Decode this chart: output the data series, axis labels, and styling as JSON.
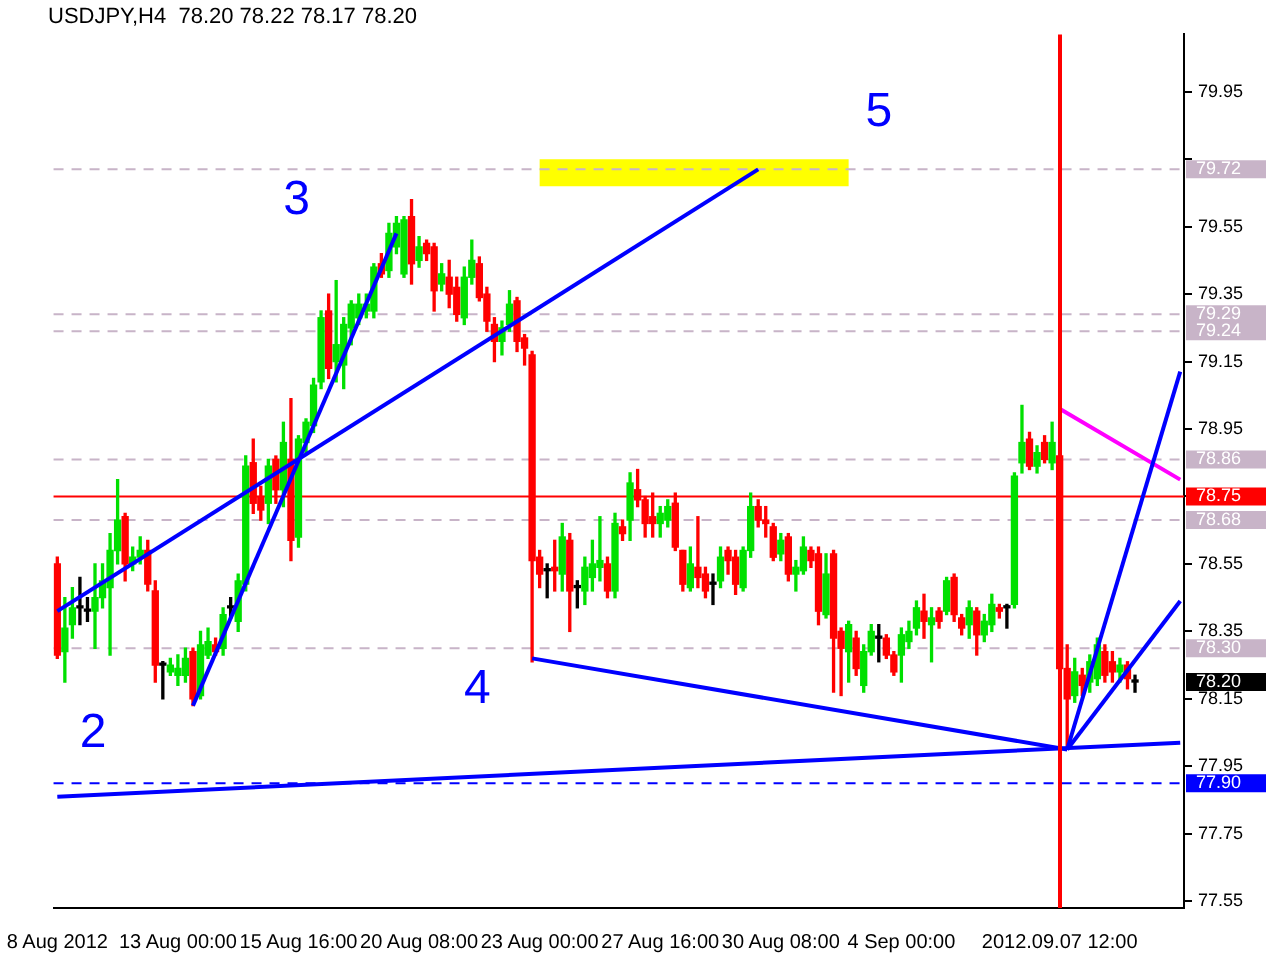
{
  "chart_data": {
    "type": "candlestick",
    "title": "USDJPY,H4  78.20 78.22 78.17 78.20",
    "categories": [
      "8 Aug 2012",
      null,
      null,
      null,
      null,
      null,
      null,
      null,
      null,
      null,
      null,
      null,
      null,
      null,
      null,
      null,
      "13 Aug 00:00",
      null,
      null,
      null,
      null,
      null,
      null,
      null,
      null,
      null,
      null,
      null,
      null,
      null,
      null,
      null,
      "15 Aug 16:00",
      null,
      null,
      null,
      null,
      null,
      null,
      null,
      null,
      null,
      null,
      null,
      null,
      null,
      null,
      null,
      "20 Aug 08:00",
      null,
      null,
      null,
      null,
      null,
      null,
      null,
      null,
      null,
      null,
      null,
      null,
      null,
      null,
      null,
      "23 Aug 00:00",
      null,
      null,
      null,
      null,
      null,
      null,
      null,
      null,
      null,
      null,
      null,
      null,
      null,
      null,
      null,
      "27 Aug 16:00",
      null,
      null,
      null,
      null,
      null,
      null,
      null,
      null,
      null,
      null,
      null,
      null,
      null,
      null,
      null,
      "30 Aug 08:00",
      null,
      null,
      null,
      null,
      null,
      null,
      null,
      null,
      null,
      null,
      null,
      null,
      null,
      null,
      null,
      "4 Sep 00:00",
      null,
      null,
      null,
      null,
      null,
      null,
      null,
      null,
      null,
      null,
      null,
      null,
      null,
      null,
      null,
      null,
      null,
      null,
      null,
      null,
      "2012.09.07 12:00",
      null,
      null,
      null,
      null,
      null,
      null,
      null,
      null,
      null,
      null,
      null,
      null,
      null,
      null,
      null,
      null
    ],
    "colors": [
      "#ff0000",
      "#00e000",
      "#00e000",
      "#000000",
      "#000000",
      "#00e000",
      "#00e000",
      "#00e000",
      "#00e000",
      "#ff0000",
      "#00e000",
      "#00e000",
      "#ff0000",
      "#ff0000",
      "#000000",
      "#00e000",
      "#00e000",
      "#00e000",
      "#ff0000",
      "#00e000",
      "#00e000",
      "#ff0000",
      "#00e000",
      "#000000",
      "#00e000",
      "#00e000",
      "#ff0000",
      "#ff0000",
      "#00e000",
      "#ff0000",
      "#00e000",
      "#ff0000",
      "#00e000",
      "#00e000",
      "#00e000",
      "#00e000",
      "#ff0000",
      "#00e000",
      "#00e000",
      "#00e000",
      "#00e000",
      "#00e000",
      "#00e000",
      "#ff0000",
      "#00e000",
      "#00e000",
      "#00e000",
      "#ff0000",
      "#00e000",
      "#ff0000",
      "#ff0000",
      "#00e000",
      "#ff0000",
      "#ff0000",
      "#00e000",
      "#00e000",
      "#ff0000",
      "#ff0000",
      "#ff0000",
      "#00e000",
      "#00e000",
      "#ff0000",
      "#ff0000",
      "#ff0000",
      "#ff0000",
      "#000000",
      "#ff0000",
      "#00e000",
      "#ff0000",
      "#000000",
      "#00e000",
      "#00e000",
      "#00e000",
      "#ff0000",
      "#00e000",
      "#ff0000",
      "#00e000",
      "#ff0000",
      "#ff0000",
      "#ff0000",
      "#00e000",
      "#00e000",
      "#ff0000",
      "#ff0000",
      "#00e000",
      "#ff0000",
      "#ff0000",
      "#000000",
      "#00e000",
      "#ff0000",
      "#ff0000",
      "#00e000",
      "#00e000",
      "#ff0000",
      "#ff0000",
      "#ff0000",
      "#00e000",
      "#ff0000",
      "#00e000",
      "#00e000",
      "#ff0000",
      "#ff0000",
      "#00e000",
      "#ff0000",
      "#ff0000",
      "#00e000",
      "#ff0000",
      "#00e000",
      "#00e000",
      "#000000",
      "#ff0000",
      "#ff0000",
      "#00e000",
      "#00e000",
      "#00e000",
      "#ff0000",
      "#00e000",
      "#ff0000",
      "#00e000",
      "#ff0000",
      "#ff0000",
      "#00e000",
      "#ff0000",
      "#00e000",
      "#00e000",
      "#ff0000",
      "#000000",
      "#00e000",
      "#00e000",
      "#ff0000",
      "#00e000",
      "#ff0000",
      "#00e000",
      "#ff0000",
      "#ff0000",
      "#00e000",
      "#ff0000",
      "#00e000",
      "#00e000",
      "#ff0000",
      "#ff0000",
      "#00e000",
      "#ff0000",
      "#000000",
      null,
      null,
      null,
      null,
      null,
      null
    ],
    "ohlc": [
      [
        78.55,
        78.57,
        78.27,
        78.28
      ],
      [
        78.29,
        78.45,
        78.2,
        78.36
      ],
      [
        78.37,
        78.48,
        78.33,
        78.42
      ],
      [
        78.42,
        78.51,
        78.37,
        78.42
      ],
      [
        78.41,
        78.45,
        78.38,
        78.41
      ],
      [
        78.41,
        78.55,
        78.3,
        78.45
      ],
      [
        78.45,
        78.55,
        78.42,
        78.5
      ],
      [
        78.48,
        78.64,
        78.28,
        78.59
      ],
      [
        78.59,
        78.8,
        78.55,
        78.68
      ],
      [
        78.69,
        78.7,
        78.5,
        78.55
      ],
      [
        78.55,
        78.6,
        78.53,
        78.57
      ],
      [
        78.57,
        78.63,
        78.55,
        78.59
      ],
      [
        78.59,
        78.62,
        78.47,
        78.49
      ],
      [
        78.47,
        78.5,
        78.2,
        78.25
      ],
      [
        78.25,
        78.26,
        78.15,
        78.25
      ],
      [
        78.23,
        78.27,
        78.22,
        78.25
      ],
      [
        78.22,
        78.28,
        78.19,
        78.24
      ],
      [
        78.22,
        78.3,
        78.2,
        78.27
      ],
      [
        78.29,
        78.3,
        78.13,
        78.15
      ],
      [
        78.16,
        78.35,
        78.15,
        78.31
      ],
      [
        78.28,
        78.36,
        78.27,
        78.32
      ],
      [
        78.31,
        78.33,
        78.28,
        78.29
      ],
      [
        78.3,
        78.42,
        78.28,
        78.4
      ],
      [
        78.42,
        78.45,
        78.39,
        78.42
      ],
      [
        78.38,
        78.52,
        78.35,
        78.5
      ],
      [
        78.49,
        78.87,
        78.47,
        78.84
      ],
      [
        78.85,
        78.92,
        78.7,
        78.73
      ],
      [
        78.75,
        78.78,
        78.68,
        78.71
      ],
      [
        78.73,
        78.86,
        78.67,
        78.84
      ],
      [
        78.86,
        78.87,
        78.73,
        78.77
      ],
      [
        78.77,
        78.97,
        78.72,
        78.91
      ],
      [
        78.86,
        79.04,
        78.56,
        78.62
      ],
      [
        78.63,
        78.93,
        78.6,
        78.92
      ],
      [
        78.91,
        78.98,
        78.88,
        78.97
      ],
      [
        78.96,
        79.1,
        78.94,
        79.08
      ],
      [
        79.09,
        79.3,
        79.07,
        79.28
      ],
      [
        79.3,
        79.35,
        79.1,
        79.13
      ],
      [
        79.15,
        79.39,
        79.09,
        79.2
      ],
      [
        79.14,
        79.28,
        79.07,
        79.26
      ],
      [
        79.25,
        79.33,
        79.2,
        79.32
      ],
      [
        79.28,
        79.35,
        79.26,
        79.32
      ],
      [
        79.3,
        79.35,
        79.28,
        79.32
      ],
      [
        79.3,
        79.44,
        79.28,
        79.43
      ],
      [
        79.44,
        79.47,
        79.4,
        79.41
      ],
      [
        79.42,
        79.56,
        79.4,
        79.53
      ],
      [
        79.49,
        79.58,
        79.47,
        79.56
      ],
      [
        79.41,
        79.58,
        79.4,
        79.57
      ],
      [
        79.58,
        79.63,
        79.38,
        79.44
      ],
      [
        79.45,
        79.52,
        79.43,
        79.49
      ],
      [
        79.5,
        79.51,
        79.45,
        79.47
      ],
      [
        79.49,
        79.5,
        79.3,
        79.36
      ],
      [
        79.38,
        79.44,
        79.36,
        79.41
      ],
      [
        79.4,
        79.45,
        79.31,
        79.35
      ],
      [
        79.37,
        79.4,
        79.27,
        79.29
      ],
      [
        79.28,
        79.43,
        79.26,
        79.4
      ],
      [
        79.4,
        79.51,
        79.38,
        79.45
      ],
      [
        79.44,
        79.46,
        79.33,
        79.34
      ],
      [
        79.35,
        79.37,
        79.24,
        79.27
      ],
      [
        79.26,
        79.28,
        79.15,
        79.21
      ],
      [
        79.21,
        79.27,
        79.17,
        79.25
      ],
      [
        79.26,
        79.36,
        79.24,
        79.32
      ],
      [
        79.33,
        79.34,
        79.18,
        79.21
      ],
      [
        79.22,
        79.23,
        79.14,
        79.19
      ],
      [
        79.17,
        79.18,
        78.26,
        78.56
      ],
      [
        78.57,
        78.59,
        78.48,
        78.52
      ],
      [
        78.53,
        78.55,
        78.45,
        78.53
      ],
      [
        78.54,
        78.62,
        78.47,
        78.53
      ],
      [
        78.52,
        78.67,
        78.47,
        78.63
      ],
      [
        78.62,
        78.64,
        78.35,
        78.47
      ],
      [
        78.48,
        78.5,
        78.42,
        78.48
      ],
      [
        78.47,
        78.57,
        78.43,
        78.54
      ],
      [
        78.51,
        78.62,
        78.47,
        78.55
      ],
      [
        78.54,
        78.69,
        78.5,
        78.56
      ],
      [
        78.55,
        78.57,
        78.45,
        78.47
      ],
      [
        78.47,
        78.7,
        78.45,
        78.67
      ],
      [
        78.66,
        78.68,
        78.62,
        78.64
      ],
      [
        78.68,
        78.82,
        78.62,
        78.79
      ],
      [
        78.77,
        78.83,
        78.72,
        78.74
      ],
      [
        78.74,
        78.75,
        78.63,
        78.67
      ],
      [
        78.69,
        78.76,
        78.63,
        78.67
      ],
      [
        78.67,
        78.72,
        78.63,
        78.7
      ],
      [
        78.68,
        78.74,
        78.66,
        78.72
      ],
      [
        78.73,
        78.76,
        78.59,
        78.6
      ],
      [
        78.59,
        78.59,
        78.47,
        78.49
      ],
      [
        78.48,
        78.6,
        78.47,
        78.55
      ],
      [
        78.54,
        78.69,
        78.48,
        78.51
      ],
      [
        78.52,
        78.54,
        78.45,
        78.47
      ],
      [
        78.49,
        78.52,
        78.43,
        78.49
      ],
      [
        78.5,
        78.6,
        78.48,
        78.57
      ],
      [
        78.59,
        78.6,
        78.52,
        78.56
      ],
      [
        78.57,
        78.59,
        78.46,
        78.49
      ],
      [
        78.48,
        78.6,
        78.47,
        78.59
      ],
      [
        78.59,
        78.76,
        78.57,
        78.72
      ],
      [
        78.72,
        78.74,
        78.66,
        78.68
      ],
      [
        78.68,
        78.72,
        78.63,
        78.67
      ],
      [
        78.66,
        78.67,
        78.56,
        78.57
      ],
      [
        78.58,
        78.64,
        78.56,
        78.62
      ],
      [
        78.63,
        78.64,
        78.5,
        78.52
      ],
      [
        78.52,
        78.56,
        78.47,
        78.54
      ],
      [
        78.53,
        78.63,
        78.52,
        78.6
      ],
      [
        78.59,
        78.6,
        78.54,
        78.56
      ],
      [
        78.58,
        78.6,
        78.37,
        78.41
      ],
      [
        78.4,
        78.58,
        78.39,
        78.52
      ],
      [
        78.58,
        78.59,
        78.17,
        78.33
      ],
      [
        78.35,
        78.36,
        78.16,
        78.3
      ],
      [
        78.29,
        78.38,
        78.2,
        78.37
      ],
      [
        78.33,
        78.35,
        78.22,
        78.24
      ],
      [
        78.19,
        78.31,
        78.17,
        78.29
      ],
      [
        78.29,
        78.37,
        78.28,
        78.35
      ],
      [
        78.33,
        78.37,
        78.26,
        78.33
      ],
      [
        78.33,
        78.34,
        78.27,
        78.28
      ],
      [
        78.28,
        78.29,
        78.22,
        78.23
      ],
      [
        78.28,
        78.36,
        78.2,
        78.34
      ],
      [
        78.32,
        78.38,
        78.3,
        78.35
      ],
      [
        78.36,
        78.44,
        78.34,
        78.42
      ],
      [
        78.41,
        78.46,
        78.33,
        78.38
      ],
      [
        78.37,
        78.42,
        78.26,
        78.39
      ],
      [
        78.41,
        78.42,
        78.36,
        78.38
      ],
      [
        78.41,
        78.51,
        78.4,
        78.5
      ],
      [
        78.51,
        78.52,
        78.38,
        78.4
      ],
      [
        78.39,
        78.4,
        78.34,
        78.36
      ],
      [
        78.37,
        78.44,
        78.33,
        78.42
      ],
      [
        78.41,
        78.42,
        78.28,
        78.34
      ],
      [
        78.34,
        78.4,
        78.32,
        78.38
      ],
      [
        78.37,
        78.46,
        78.35,
        78.43
      ],
      [
        78.42,
        78.43,
        78.39,
        78.41
      ],
      [
        78.42,
        78.43,
        78.36,
        78.42
      ],
      [
        78.43,
        78.82,
        78.42,
        78.81
      ],
      [
        78.85,
        79.02,
        78.82,
        78.91
      ],
      [
        78.92,
        78.94,
        78.83,
        78.84
      ],
      [
        78.84,
        78.9,
        78.82,
        78.88
      ],
      [
        78.91,
        78.93,
        78.85,
        78.86
      ],
      [
        78.85,
        78.97,
        78.83,
        78.91
      ],
      [
        78.87,
        78.96,
        78.01,
        78.24
      ],
      [
        78.24,
        78.31,
        78.01,
        78.15
      ],
      [
        78.16,
        78.27,
        78.14,
        78.23
      ],
      [
        78.22,
        78.24,
        78.16,
        78.19
      ],
      [
        78.2,
        78.28,
        78.17,
        78.26
      ],
      [
        78.21,
        78.33,
        78.19,
        78.31
      ],
      [
        78.29,
        78.31,
        78.2,
        78.22
      ],
      [
        78.26,
        78.29,
        78.2,
        78.23
      ],
      [
        78.23,
        78.27,
        78.2,
        78.25
      ],
      [
        78.25,
        78.26,
        78.18,
        78.21
      ],
      [
        78.2,
        78.22,
        78.17,
        78.2
      ],
      null,
      null,
      null,
      null,
      null,
      null
    ],
    "series": [
      {
        "type": "line",
        "color": "#0000ff",
        "values": [
          null,
          null,
          null,
          null,
          null,
          null,
          null,
          null,
          null,
          null,
          null,
          null,
          null,
          null,
          null,
          null,
          null,
          null,
          78.13,
          null,
          null,
          null,
          null,
          null,
          null,
          null,
          null,
          null,
          null,
          null,
          null,
          null,
          null,
          null,
          null,
          null,
          null,
          null,
          null,
          null,
          null,
          null,
          null,
          null,
          null,
          79.53,
          null,
          null,
          null,
          null,
          null,
          null,
          null,
          null,
          null,
          null,
          null,
          null,
          null,
          null,
          null,
          null,
          null,
          null,
          null,
          null,
          null,
          null,
          null,
          null,
          null,
          null,
          null,
          null,
          null,
          null,
          null,
          null,
          null,
          null,
          null,
          null,
          null,
          null,
          null,
          null,
          null,
          null,
          null,
          null,
          null,
          null,
          null,
          null,
          null,
          null,
          null,
          null,
          null,
          null,
          null,
          null,
          null,
          null,
          null,
          null,
          null,
          null,
          null,
          null,
          null,
          null,
          null,
          null,
          null,
          null,
          null,
          null,
          null,
          null,
          null,
          null,
          null,
          null,
          null,
          null,
          null,
          null,
          null,
          null,
          null,
          null,
          null,
          null,
          null,
          null,
          null,
          null,
          null,
          null,
          null,
          null,
          null,
          null,
          null,
          null,
          null,
          null,
          null,
          null
        ]
      },
      {
        "type": "line",
        "color": "#0000ff",
        "values": [
          78.41,
          null,
          null,
          null,
          null,
          null,
          null,
          null,
          null,
          null,
          null,
          null,
          null,
          null,
          null,
          null,
          null,
          null,
          null,
          null,
          null,
          null,
          null,
          null,
          null,
          null,
          null,
          null,
          null,
          null,
          null,
          null,
          null,
          null,
          null,
          null,
          null,
          null,
          null,
          null,
          null,
          null,
          null,
          null,
          null,
          null,
          null,
          null,
          null,
          null,
          null,
          null,
          null,
          null,
          null,
          null,
          null,
          null,
          null,
          null,
          null,
          null,
          null,
          null,
          null,
          null,
          null,
          null,
          null,
          null,
          null,
          null,
          null,
          null,
          null,
          null,
          null,
          null,
          null,
          null,
          null,
          null,
          null,
          null,
          null,
          null,
          null,
          null,
          null,
          null,
          null,
          null,
          null,
          79.72,
          null,
          null,
          null,
          null,
          null,
          null,
          null,
          null,
          null,
          null,
          null,
          null,
          null,
          null,
          null,
          null,
          null,
          null,
          null,
          null,
          null,
          null,
          null,
          null,
          null,
          null,
          null,
          null,
          null,
          null,
          null,
          null,
          null,
          null,
          null,
          null,
          null,
          null,
          null,
          null,
          null,
          null,
          null,
          null,
          null,
          null,
          null,
          null,
          null,
          null,
          null,
          null,
          null,
          null,
          null,
          null
        ]
      },
      {
        "type": "line",
        "color": "#0000ff",
        "values": [
          null,
          null,
          null,
          null,
          null,
          null,
          null,
          null,
          null,
          null,
          null,
          null,
          null,
          null,
          null,
          null,
          null,
          null,
          null,
          null,
          null,
          null,
          null,
          null,
          null,
          null,
          null,
          null,
          null,
          null,
          null,
          null,
          null,
          null,
          null,
          null,
          null,
          null,
          null,
          null,
          null,
          null,
          null,
          null,
          null,
          null,
          null,
          null,
          null,
          null,
          null,
          null,
          null,
          null,
          null,
          null,
          null,
          null,
          null,
          null,
          null,
          null,
          null,
          78.27,
          null,
          null,
          null,
          null,
          null,
          null,
          null,
          null,
          null,
          null,
          null,
          null,
          null,
          null,
          null,
          null,
          null,
          null,
          null,
          null,
          null,
          null,
          null,
          null,
          null,
          null,
          null,
          null,
          null,
          null,
          null,
          null,
          null,
          null,
          null,
          null,
          null,
          null,
          null,
          null,
          null,
          null,
          null,
          null,
          null,
          null,
          null,
          null,
          null,
          null,
          null,
          null,
          null,
          null,
          null,
          null,
          null,
          null,
          null,
          null,
          null,
          null,
          null,
          null,
          null,
          null,
          null,
          null,
          null,
          null,
          78.0,
          null,
          null,
          null,
          null,
          null,
          null,
          null,
          null,
          null,
          null,
          null,
          null,
          null,
          null,
          null
        ]
      },
      {
        "type": "line",
        "color": "#0000ff",
        "values": [
          77.86,
          null,
          null,
          null,
          null,
          null,
          null,
          null,
          null,
          null,
          null,
          null,
          null,
          null,
          null,
          null,
          null,
          null,
          null,
          null,
          null,
          null,
          null,
          null,
          null,
          null,
          null,
          null,
          null,
          null,
          null,
          null,
          null,
          null,
          null,
          null,
          null,
          null,
          null,
          null,
          null,
          null,
          null,
          null,
          null,
          null,
          null,
          null,
          null,
          null,
          null,
          null,
          null,
          null,
          null,
          null,
          null,
          null,
          null,
          null,
          null,
          null,
          null,
          null,
          null,
          null,
          null,
          null,
          null,
          null,
          null,
          null,
          null,
          null,
          null,
          null,
          null,
          null,
          null,
          null,
          null,
          null,
          null,
          null,
          null,
          null,
          null,
          null,
          null,
          null,
          null,
          null,
          null,
          null,
          null,
          null,
          null,
          null,
          null,
          null,
          null,
          null,
          null,
          null,
          null,
          null,
          null,
          null,
          null,
          null,
          null,
          null,
          null,
          null,
          null,
          null,
          null,
          null,
          null,
          null,
          null,
          null,
          null,
          null,
          null,
          null,
          null,
          null,
          null,
          null,
          null,
          null,
          null,
          null,
          null,
          null,
          null,
          null,
          null,
          null,
          null,
          null,
          null,
          null,
          null,
          null,
          null,
          null,
          null,
          78.02
        ]
      },
      {
        "type": "line",
        "color": "#0000ff",
        "values": [
          null,
          null,
          null,
          null,
          null,
          null,
          null,
          null,
          null,
          null,
          null,
          null,
          null,
          null,
          null,
          null,
          null,
          null,
          null,
          null,
          null,
          null,
          null,
          null,
          null,
          null,
          null,
          null,
          null,
          null,
          null,
          null,
          null,
          null,
          null,
          null,
          null,
          null,
          null,
          null,
          null,
          null,
          null,
          null,
          null,
          null,
          null,
          null,
          null,
          null,
          null,
          null,
          null,
          null,
          null,
          null,
          null,
          null,
          null,
          null,
          null,
          null,
          null,
          null,
          null,
          null,
          null,
          null,
          null,
          null,
          null,
          null,
          null,
          null,
          null,
          null,
          null,
          null,
          null,
          null,
          null,
          null,
          null,
          null,
          null,
          null,
          null,
          null,
          null,
          null,
          null,
          null,
          null,
          null,
          null,
          null,
          null,
          null,
          null,
          null,
          null,
          null,
          null,
          null,
          null,
          null,
          null,
          null,
          null,
          null,
          null,
          null,
          null,
          null,
          null,
          null,
          null,
          null,
          null,
          null,
          null,
          null,
          null,
          null,
          null,
          null,
          null,
          null,
          null,
          null,
          null,
          null,
          null,
          null,
          78.0,
          null,
          null,
          null,
          null,
          null,
          null,
          null,
          null,
          null,
          null,
          null,
          null,
          null,
          null,
          79.12
        ]
      },
      {
        "type": "line",
        "color": "#ff00ff",
        "values": [
          null,
          null,
          null,
          null,
          null,
          null,
          null,
          null,
          null,
          null,
          null,
          null,
          null,
          null,
          null,
          null,
          null,
          null,
          null,
          null,
          null,
          null,
          null,
          null,
          null,
          null,
          null,
          null,
          null,
          null,
          null,
          null,
          null,
          null,
          null,
          null,
          null,
          null,
          null,
          null,
          null,
          null,
          null,
          null,
          null,
          null,
          null,
          null,
          null,
          null,
          null,
          null,
          null,
          null,
          null,
          null,
          null,
          null,
          null,
          null,
          null,
          null,
          null,
          null,
          null,
          null,
          null,
          null,
          null,
          null,
          null,
          null,
          null,
          null,
          null,
          null,
          null,
          null,
          null,
          null,
          null,
          null,
          null,
          null,
          null,
          null,
          null,
          null,
          null,
          null,
          null,
          null,
          null,
          null,
          null,
          null,
          null,
          null,
          null,
          null,
          null,
          null,
          null,
          null,
          null,
          null,
          null,
          null,
          null,
          null,
          null,
          null,
          null,
          null,
          null,
          null,
          null,
          null,
          null,
          null,
          null,
          null,
          null,
          null,
          null,
          null,
          null,
          null,
          null,
          null,
          null,
          null,
          null,
          79.01,
          null,
          null,
          null,
          null,
          null,
          null,
          null,
          null,
          null,
          null,
          null,
          null,
          null,
          null,
          null,
          78.8
        ]
      },
      {
        "type": "line",
        "color": "#0000ff",
        "values": [
          null,
          null,
          null,
          null,
          null,
          null,
          null,
          null,
          null,
          null,
          null,
          null,
          null,
          null,
          null,
          null,
          null,
          null,
          null,
          null,
          null,
          null,
          null,
          null,
          null,
          null,
          null,
          null,
          null,
          null,
          null,
          null,
          null,
          null,
          null,
          null,
          null,
          null,
          null,
          null,
          null,
          null,
          null,
          null,
          null,
          null,
          null,
          null,
          null,
          null,
          null,
          null,
          null,
          null,
          null,
          null,
          null,
          null,
          null,
          null,
          null,
          null,
          null,
          null,
          null,
          null,
          null,
          null,
          null,
          null,
          null,
          null,
          null,
          null,
          null,
          null,
          null,
          null,
          null,
          null,
          null,
          null,
          null,
          null,
          null,
          null,
          null,
          null,
          null,
          null,
          null,
          null,
          null,
          null,
          null,
          null,
          null,
          null,
          null,
          null,
          null,
          null,
          null,
          null,
          null,
          null,
          null,
          null,
          null,
          null,
          null,
          null,
          null,
          null,
          null,
          null,
          null,
          null,
          null,
          null,
          null,
          null,
          null,
          null,
          null,
          null,
          null,
          null,
          null,
          null,
          null,
          null,
          null,
          null,
          78.0,
          null,
          null,
          null,
          null,
          null,
          null,
          null,
          null,
          null,
          null,
          null,
          null,
          null,
          null,
          78.44
        ]
      }
    ],
    "ylim": [
      77.53,
      80.12
    ],
    "yticks": [
      77.55,
      77.75,
      77.95,
      78.15,
      78.35,
      78.55,
      {
        "value": 78.75,
        "label": null
      },
      78.95,
      79.15,
      79.35,
      79.55,
      {
        "value": 79.75,
        "label": null
      },
      79.95
    ],
    "ref_lines": [
      {
        "axis": "y",
        "value": 79.72,
        "label": "79.72",
        "color": "#c8b4c8",
        "line_style": "dashed"
      },
      {
        "axis": "y",
        "value": 79.29,
        "label": "79.29",
        "color": "#c8b4c8",
        "line_style": "dashed"
      },
      {
        "axis": "y",
        "value": 79.24,
        "label": "79.24",
        "color": "#c8b4c8",
        "line_style": "dashed"
      },
      {
        "axis": "y",
        "value": 78.86,
        "label": "78.86",
        "color": "#c8b4c8",
        "line_style": "dashed"
      },
      {
        "axis": "y",
        "value": 78.75,
        "label": "78.75",
        "color": "#ff0000",
        "line_style": "solid"
      },
      {
        "axis": "y",
        "value": 78.68,
        "label": "78.68",
        "color": "#c8b4c8",
        "line_style": "dashed"
      },
      {
        "axis": "y",
        "value": 78.3,
        "label": "78.30",
        "color": "#c8b4c8",
        "line_style": "dashed"
      },
      {
        "axis": "y",
        "value": 77.9,
        "label": "77.90",
        "color": "#0000ff",
        "line_style": "dashed"
      },
      {
        "axis": "x",
        "value": "2012.09.07 12:00",
        "color": "#ff0000",
        "line_style": "solid"
      }
    ],
    "bands": [
      {
        "axis": "y",
        "from": 79.67,
        "to": 79.75,
        "color": "#ffff00"
      }
    ],
    "annotations": [
      "2",
      "3",
      "4",
      "5",
      "78.20"
    ],
    "grid": false,
    "legend": false
  }
}
